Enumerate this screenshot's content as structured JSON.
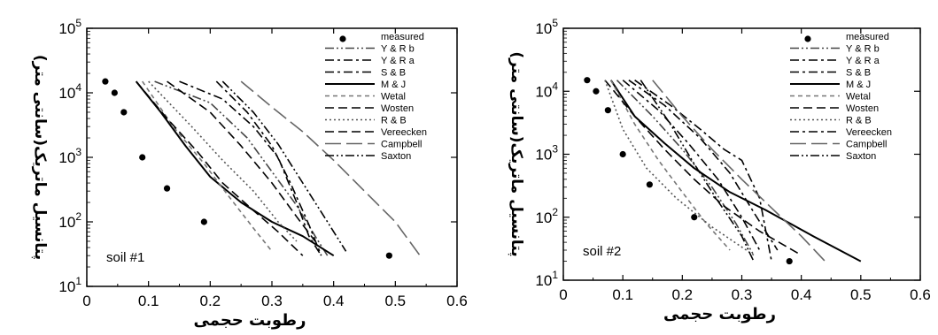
{
  "chart_data": [
    {
      "type": "line",
      "panel_label": "soil #1",
      "xlabel": "رطوبت حجمی",
      "ylabel": "پتانسیل ماتریک(سانتی متر)",
      "xlim": [
        0,
        0.6
      ],
      "ylim": [
        10,
        100000
      ],
      "yscale": "log",
      "x_ticks": [
        "0",
        "0.1",
        "0.2",
        "0.3",
        "0.4",
        "0.5",
        "0.6"
      ],
      "y_ticks": [
        {
          "base": "10",
          "exp": "1"
        },
        {
          "base": "10",
          "exp": "2"
        },
        {
          "base": "10",
          "exp": "3"
        },
        {
          "base": "10",
          "exp": "4"
        },
        {
          "base": "10",
          "exp": "5"
        }
      ],
      "series": [
        {
          "name": "measured",
          "style": "points",
          "x": [
            0.03,
            0.045,
            0.06,
            0.09,
            0.13,
            0.19,
            0.49
          ],
          "y": [
            15000,
            10000,
            5000,
            1000,
            330,
            100,
            30
          ]
        },
        {
          "name": "Y & R b",
          "style": "dashdotdot",
          "x": [
            0.11,
            0.2,
            0.26,
            0.3,
            0.34,
            0.37,
            0.39
          ],
          "y": [
            15000,
            7000,
            2000,
            600,
            180,
            60,
            30
          ]
        },
        {
          "name": "Y & R a",
          "style": "dashdot",
          "x": [
            0.15,
            0.22,
            0.27,
            0.31,
            0.34,
            0.36,
            0.38
          ],
          "y": [
            15000,
            8000,
            3000,
            1000,
            200,
            60,
            30
          ]
        },
        {
          "name": "S & B",
          "style": "dashdot",
          "x": [
            0.21,
            0.26,
            0.3,
            0.33,
            0.36,
            0.38
          ],
          "y": [
            15000,
            5000,
            1500,
            400,
            90,
            30
          ]
        },
        {
          "name": "M & J",
          "style": "solid",
          "x": [
            0.08,
            0.12,
            0.16,
            0.2,
            0.25,
            0.3,
            0.35,
            0.4
          ],
          "y": [
            15000,
            5000,
            1500,
            500,
            200,
            100,
            60,
            30
          ]
        },
        {
          "name": "Wetal",
          "style": "shortdash",
          "x": [
            0.09,
            0.14,
            0.19,
            0.23,
            0.27,
            0.3
          ],
          "y": [
            15000,
            3000,
            800,
            250,
            80,
            35
          ]
        },
        {
          "name": "Wosten",
          "style": "dash",
          "x": [
            0.08,
            0.13,
            0.18,
            0.22,
            0.27,
            0.31,
            0.35
          ],
          "y": [
            15000,
            4000,
            1200,
            400,
            150,
            70,
            30
          ]
        },
        {
          "name": "R & B",
          "style": "dotted",
          "x": [
            0.1,
            0.17,
            0.22,
            0.27,
            0.31,
            0.34
          ],
          "y": [
            15000,
            3000,
            900,
            300,
            100,
            50
          ]
        },
        {
          "name": "Vereecken",
          "style": "dash",
          "x": [
            0.13,
            0.2,
            0.25,
            0.3,
            0.34,
            0.37
          ],
          "y": [
            15000,
            5000,
            1500,
            400,
            120,
            50
          ]
        },
        {
          "name": "Campbell",
          "style": "longdash",
          "x": [
            0.25,
            0.3,
            0.35,
            0.4,
            0.45,
            0.5,
            0.54
          ],
          "y": [
            15000,
            6000,
            2500,
            900,
            300,
            100,
            30
          ]
        },
        {
          "name": "Saxton",
          "style": "dashdotdot",
          "x": [
            0.22,
            0.27,
            0.31,
            0.35,
            0.39,
            0.42
          ],
          "y": [
            15000,
            5000,
            1600,
            400,
            100,
            35
          ]
        }
      ]
    },
    {
      "type": "line",
      "panel_label": "soil #2",
      "xlabel": "رطوبت حجمی",
      "ylabel": "پتانسیل ماتریک(سانتی متر)",
      "xlim": [
        0,
        0.6
      ],
      "ylim": [
        10,
        100000
      ],
      "yscale": "log",
      "x_ticks": [
        "0",
        "0.1",
        "0.2",
        "0.3",
        "0.4",
        "0.5",
        "0.6"
      ],
      "y_ticks": [
        {
          "base": "10",
          "exp": "1"
        },
        {
          "base": "10",
          "exp": "2"
        },
        {
          "base": "10",
          "exp": "3"
        },
        {
          "base": "10",
          "exp": "4"
        },
        {
          "base": "10",
          "exp": "5"
        }
      ],
      "series": [
        {
          "name": "measured",
          "style": "points",
          "x": [
            0.04,
            0.055,
            0.075,
            0.1,
            0.145,
            0.22,
            0.38
          ],
          "y": [
            15000,
            10000,
            5000,
            1000,
            330,
            100,
            20
          ]
        },
        {
          "name": "Y & R b",
          "style": "dashdotdot",
          "x": [
            0.09,
            0.15,
            0.2,
            0.25,
            0.29,
            0.32
          ],
          "y": [
            15000,
            4000,
            1200,
            300,
            80,
            25
          ]
        },
        {
          "name": "Y & R a",
          "style": "dashdot",
          "x": [
            0.1,
            0.16,
            0.21,
            0.26,
            0.3,
            0.33
          ],
          "y": [
            15000,
            5000,
            1500,
            400,
            100,
            30
          ]
        },
        {
          "name": "S & B",
          "style": "dashdot",
          "x": [
            0.11,
            0.17,
            0.23,
            0.28,
            0.32,
            0.36
          ],
          "y": [
            15000,
            6000,
            1800,
            500,
            120,
            30
          ]
        },
        {
          "name": "M & J",
          "style": "solid",
          "x": [
            0.08,
            0.12,
            0.17,
            0.22,
            0.28,
            0.34,
            0.42,
            0.5
          ],
          "y": [
            15000,
            4000,
            1500,
            600,
            250,
            130,
            50,
            20
          ]
        },
        {
          "name": "Wetal",
          "style": "shortdash",
          "x": [
            0.08,
            0.12,
            0.16,
            0.2,
            0.24,
            0.28
          ],
          "y": [
            15000,
            3000,
            800,
            250,
            80,
            30
          ]
        },
        {
          "name": "Wosten",
          "style": "dash",
          "x": [
            0.07,
            0.12,
            0.17,
            0.22,
            0.27,
            0.33,
            0.4
          ],
          "y": [
            15000,
            4000,
            1200,
            400,
            150,
            60,
            25
          ]
        },
        {
          "name": "R & B",
          "style": "dotted",
          "x": [
            0.07,
            0.1,
            0.14,
            0.19,
            0.25,
            0.32
          ],
          "y": [
            15000,
            2500,
            600,
            200,
            70,
            25
          ]
        },
        {
          "name": "Vereecken",
          "style": "dashdot",
          "x": [
            0.12,
            0.18,
            0.23,
            0.27,
            0.3,
            0.33,
            0.35
          ],
          "y": [
            15000,
            6000,
            2500,
            1200,
            800,
            200,
            20
          ]
        },
        {
          "name": "Campbell",
          "style": "longdash",
          "x": [
            0.15,
            0.2,
            0.25,
            0.3,
            0.35,
            0.4,
            0.44
          ],
          "y": [
            15000,
            4000,
            1200,
            400,
            140,
            50,
            20
          ]
        },
        {
          "name": "Saxton",
          "style": "dashdotdot",
          "x": [
            0.13,
            0.18,
            0.22,
            0.26,
            0.3,
            0.32
          ],
          "y": [
            15000,
            3000,
            700,
            180,
            50,
            20
          ]
        }
      ]
    }
  ]
}
